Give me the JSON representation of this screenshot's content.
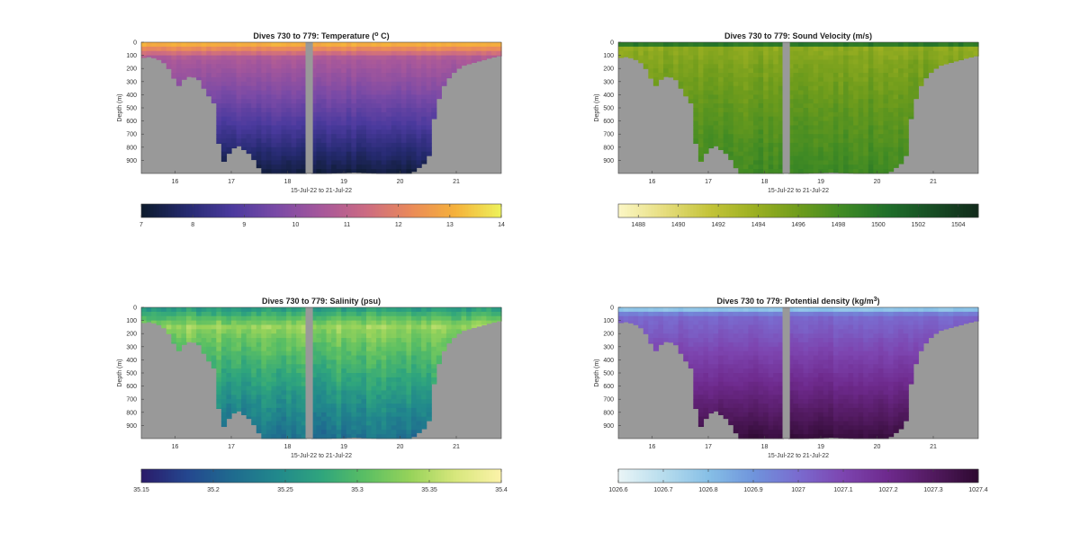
{
  "figure": {
    "background": "#ffffff",
    "land_color": "#999999",
    "gap_color": "#999999"
  },
  "chart_data": [
    {
      "type": "heatmap",
      "title": "Dives 730 to 779: Temperature (",
      "title_sup": "o",
      "title_end": " C)",
      "xlabel": "15-Jul-22 to 21-Jul-22",
      "ylabel": "Depth (m)",
      "x_ticks": [
        "16",
        "17",
        "18",
        "19",
        "20",
        "21"
      ],
      "x_tick_values": [
        16,
        17,
        18,
        19,
        20,
        21
      ],
      "xlim": [
        15.4,
        21.8
      ],
      "y_ticks": [
        "0",
        "100",
        "200",
        "300",
        "400",
        "500",
        "600",
        "700",
        "800",
        "900"
      ],
      "y_tick_values": [
        0,
        100,
        200,
        300,
        400,
        500,
        600,
        700,
        800,
        900
      ],
      "ylim": [
        0,
        1000
      ],
      "colorbar_ticks": [
        "7",
        "8",
        "9",
        "10",
        "11",
        "12",
        "13",
        "14"
      ],
      "colorbar_tick_values": [
        7,
        8,
        9,
        10,
        11,
        12,
        13,
        14
      ],
      "clim": [
        7,
        14
      ],
      "colormap": [
        "#0d1b2e",
        "#252a70",
        "#4b3a9e",
        "#7a4aa6",
        "#a6579b",
        "#cc6b82",
        "#ea8a5a",
        "#f5b13b",
        "#eef05a"
      ],
      "surface_value": 13.4,
      "deep_value": 7.2,
      "transition_depth": 120,
      "speckle": 0.25
    },
    {
      "type": "heatmap",
      "title": "Dives 730 to 779: Sound Velocity (m/s)",
      "xlabel": "15-Jul-22 to 21-Jul-22",
      "ylabel": "Depth (m)",
      "x_ticks": [
        "16",
        "17",
        "18",
        "19",
        "20",
        "21"
      ],
      "x_tick_values": [
        16,
        17,
        18,
        19,
        20,
        21
      ],
      "xlim": [
        15.4,
        21.8
      ],
      "y_ticks": [
        "0",
        "100",
        "200",
        "300",
        "400",
        "500",
        "600",
        "700",
        "800",
        "900"
      ],
      "y_tick_values": [
        0,
        100,
        200,
        300,
        400,
        500,
        600,
        700,
        800,
        900
      ],
      "ylim": [
        0,
        1000
      ],
      "colorbar_ticks": [
        "1488",
        "1490",
        "1492",
        "1494",
        "1496",
        "1498",
        "1500",
        "1502",
        "1504"
      ],
      "colorbar_tick_values": [
        1488,
        1490,
        1492,
        1494,
        1496,
        1498,
        1500,
        1502,
        1504
      ],
      "clim": [
        1487,
        1505
      ],
      "colormap": [
        "#fbf6c4",
        "#e6dd7e",
        "#c4c43a",
        "#9cb022",
        "#6f9c1c",
        "#3f8a24",
        "#1f6f2a",
        "#174d24",
        "#122b1b"
      ],
      "surface_value": 1503.5,
      "deep_value": 1498.5,
      "mid_value": 1494.5,
      "transition_depth": 40,
      "speckle": 1.2
    },
    {
      "type": "heatmap",
      "title": "Dives 730 to 779: Salinity (psu)",
      "xlabel": "15-Jul-22 to 21-Jul-22",
      "ylabel": "Depth (m)",
      "x_ticks": [
        "16",
        "17",
        "18",
        "19",
        "20",
        "21"
      ],
      "x_tick_values": [
        16,
        17,
        18,
        19,
        20,
        21
      ],
      "xlim": [
        15.4,
        21.8
      ],
      "y_ticks": [
        "0",
        "100",
        "200",
        "300",
        "400",
        "500",
        "600",
        "700",
        "800",
        "900"
      ],
      "y_tick_values": [
        0,
        100,
        200,
        300,
        400,
        500,
        600,
        700,
        800,
        900
      ],
      "ylim": [
        0,
        1000
      ],
      "colorbar_ticks": [
        "35.15",
        "35.2",
        "35.25",
        "35.3",
        "35.35",
        "35.4"
      ],
      "colorbar_tick_values": [
        35.15,
        35.2,
        35.25,
        35.3,
        35.35,
        35.4
      ],
      "clim": [
        35.15,
        35.4
      ],
      "colormap": [
        "#2a1c6b",
        "#24478f",
        "#1f6b8f",
        "#21888c",
        "#2fa57d",
        "#5bbf63",
        "#97d35a",
        "#d7e77c",
        "#fbf2a8"
      ],
      "surface_value": 35.26,
      "deep_value": 35.22,
      "mid_value": 35.34,
      "transition_depth": 150,
      "speckle": 0.025
    },
    {
      "type": "heatmap",
      "title": "Dives 730 to 779: Potential density (kg/m",
      "title_sup": "3",
      "title_end": ")",
      "xlabel": "15-Jul-22 to 21-Jul-22",
      "ylabel": "Depth (m)",
      "x_ticks": [
        "16",
        "17",
        "18",
        "19",
        "20",
        "21"
      ],
      "x_tick_values": [
        16,
        17,
        18,
        19,
        20,
        21
      ],
      "xlim": [
        15.4,
        21.8
      ],
      "y_ticks": [
        "0",
        "100",
        "200",
        "300",
        "400",
        "500",
        "600",
        "700",
        "800",
        "900"
      ],
      "y_tick_values": [
        0,
        100,
        200,
        300,
        400,
        500,
        600,
        700,
        800,
        900
      ],
      "ylim": [
        0,
        1000
      ],
      "colorbar_ticks": [
        "1026.6",
        "1026.7",
        "1026.8",
        "1026.9",
        "1027",
        "1027.1",
        "1027.2",
        "1027.3",
        "1027.4"
      ],
      "colorbar_tick_values": [
        1026.6,
        1026.7,
        1026.8,
        1026.9,
        1027,
        1027.1,
        1027.2,
        1027.3,
        1027.4
      ],
      "clim": [
        1026.6,
        1027.4
      ],
      "colormap": [
        "#e8f4f6",
        "#b6dced",
        "#86bfe6",
        "#6f94dc",
        "#7a6bcf",
        "#7d45b0",
        "#6e2a8d",
        "#521a60",
        "#2f0a32"
      ],
      "surface_value": 1026.7,
      "deep_value": 1027.38,
      "transition_depth": 60,
      "speckle": 0.03
    }
  ]
}
